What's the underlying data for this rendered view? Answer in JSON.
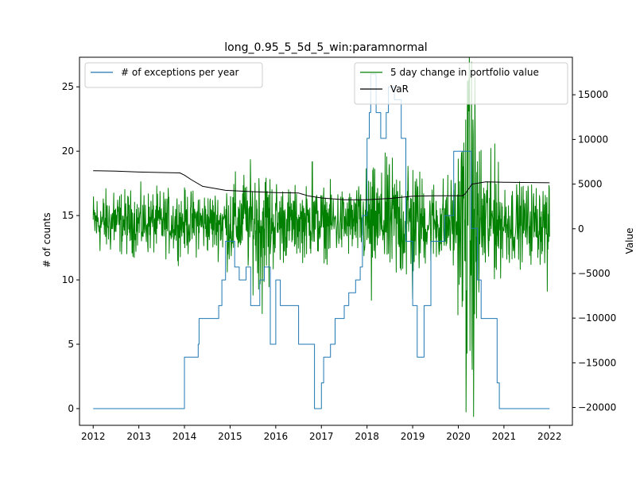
{
  "chart_data": {
    "type": "line",
    "title": "long_0.95_5_5d_5_win:paramnormal",
    "xlabel": "",
    "ylabel_left": "# of counts",
    "ylabel_right": "Value",
    "xlim": [
      2011.7,
      2022.5
    ],
    "ylim_left": [
      -1.3,
      27.3
    ],
    "ylim_right": [
      -22000,
      19200
    ],
    "x_ticks": [
      2012,
      2013,
      2014,
      2015,
      2016,
      2017,
      2018,
      2019,
      2020,
      2021,
      2022
    ],
    "x_tick_labels": [
      "2012",
      "2013",
      "2014",
      "2015",
      "2016",
      "2017",
      "2018",
      "2019",
      "2020",
      "2021",
      "2022"
    ],
    "y_left_ticks": [
      0,
      5,
      10,
      15,
      20,
      25
    ],
    "y_left_tick_labels": [
      "0",
      "5",
      "10",
      "15",
      "20",
      "25"
    ],
    "y_right_ticks": [
      -20000,
      -15000,
      -10000,
      -5000,
      0,
      5000,
      10000,
      15000
    ],
    "y_right_tick_labels": [
      "−20000",
      "−15000",
      "−10000",
      "−5000",
      "0",
      "5000",
      "10000",
      "15000"
    ],
    "grid": false,
    "legends": [
      {
        "placement": "upper-left",
        "entries": [
          {
            "name": "# of exceptions per year",
            "color": "#1f77b4"
          }
        ]
      },
      {
        "placement": "upper-right",
        "entries": [
          {
            "name": "5 day change in portfolio value",
            "color": "#008000"
          },
          {
            "name": "VaR",
            "color": "#000000"
          }
        ]
      }
    ],
    "series": [
      {
        "name": "# of exceptions per year",
        "axis": "left",
        "color": "#1f77b4",
        "step": true,
        "points": [
          [
            2012.0,
            0
          ],
          [
            2014.0,
            4
          ],
          [
            2014.3,
            5
          ],
          [
            2014.32,
            7
          ],
          [
            2014.75,
            8
          ],
          [
            2014.82,
            10
          ],
          [
            2014.9,
            13
          ],
          [
            2015.1,
            11
          ],
          [
            2015.2,
            10
          ],
          [
            2015.35,
            11
          ],
          [
            2015.45,
            8
          ],
          [
            2015.65,
            10
          ],
          [
            2015.75,
            11
          ],
          [
            2015.88,
            5
          ],
          [
            2016.0,
            10
          ],
          [
            2016.1,
            8
          ],
          [
            2016.5,
            5
          ],
          [
            2016.85,
            0
          ],
          [
            2017.0,
            2
          ],
          [
            2017.05,
            4
          ],
          [
            2017.2,
            5
          ],
          [
            2017.3,
            7
          ],
          [
            2017.5,
            8
          ],
          [
            2017.6,
            9
          ],
          [
            2017.75,
            10
          ],
          [
            2017.85,
            11
          ],
          [
            2017.9,
            15
          ],
          [
            2018.0,
            21
          ],
          [
            2018.05,
            23
          ],
          [
            2018.08,
            26
          ],
          [
            2018.2,
            23
          ],
          [
            2018.3,
            21
          ],
          [
            2018.42,
            23
          ],
          [
            2018.47,
            25
          ],
          [
            2018.6,
            24
          ],
          [
            2018.75,
            21
          ],
          [
            2018.85,
            13
          ],
          [
            2019.0,
            8
          ],
          [
            2019.1,
            4
          ],
          [
            2019.25,
            8
          ],
          [
            2019.4,
            13
          ],
          [
            2019.7,
            15
          ],
          [
            2019.9,
            20
          ],
          [
            2020.28,
            14
          ],
          [
            2020.42,
            10
          ],
          [
            2020.5,
            7
          ],
          [
            2020.85,
            2
          ],
          [
            2020.9,
            0
          ],
          [
            2022.0,
            0
          ]
        ]
      },
      {
        "name": "5 day change in portfolio value",
        "axis": "right",
        "color": "#008000",
        "generated": {
          "x_start": 2012.0,
          "x_end": 2022.0,
          "count": 1400
        },
        "base_amplitude": 2000,
        "volatility_profile": [
          [
            2012.0,
            1.0
          ],
          [
            2014.8,
            1.0
          ],
          [
            2015.0,
            1.5
          ],
          [
            2015.3,
            1.3
          ],
          [
            2015.6,
            2.1
          ],
          [
            2016.0,
            1.4
          ],
          [
            2016.3,
            1.1
          ],
          [
            2017.8,
            1.1
          ],
          [
            2018.0,
            1.7
          ],
          [
            2018.3,
            1.5
          ],
          [
            2018.6,
            2.0
          ],
          [
            2019.0,
            2.0
          ],
          [
            2019.3,
            1.3
          ],
          [
            2019.9,
            1.5
          ],
          [
            2020.1,
            3.5
          ],
          [
            2020.3,
            6.0
          ],
          [
            2020.5,
            2.3
          ],
          [
            2020.9,
            1.6
          ],
          [
            2021.3,
            1.2
          ],
          [
            2022.0,
            1.3
          ]
        ],
        "spikes": [
          [
            2012.45,
            4000
          ],
          [
            2014.3,
            3200
          ],
          [
            2015.3,
            6000
          ],
          [
            2015.7,
            -9500
          ],
          [
            2015.85,
            -6500
          ],
          [
            2016.8,
            7500
          ],
          [
            2018.1,
            -8000
          ],
          [
            2018.4,
            8500
          ],
          [
            2018.9,
            7000
          ],
          [
            2019.0,
            -7800
          ],
          [
            2020.17,
            -20500
          ],
          [
            2020.2,
            16500
          ],
          [
            2020.25,
            10500
          ],
          [
            2020.3,
            -12500
          ],
          [
            2020.4,
            -10000
          ],
          [
            2020.8,
            9500
          ],
          [
            2021.95,
            -7000
          ]
        ]
      },
      {
        "name": "VaR",
        "axis": "right",
        "color": "#000000",
        "points": [
          [
            2012.0,
            6500
          ],
          [
            2012.5,
            6450
          ],
          [
            2013.0,
            6350
          ],
          [
            2013.5,
            6300
          ],
          [
            2013.9,
            6250
          ],
          [
            2014.0,
            6000
          ],
          [
            2014.15,
            5500
          ],
          [
            2014.4,
            4750
          ],
          [
            2014.9,
            4300
          ],
          [
            2015.5,
            4150
          ],
          [
            2016.0,
            4050
          ],
          [
            2016.5,
            4000
          ],
          [
            2016.7,
            3700
          ],
          [
            2017.0,
            3450
          ],
          [
            2017.5,
            3250
          ],
          [
            2018.0,
            3250
          ],
          [
            2018.5,
            3400
          ],
          [
            2019.0,
            3650
          ],
          [
            2019.5,
            3700
          ],
          [
            2020.1,
            3700
          ],
          [
            2020.15,
            3900
          ],
          [
            2020.3,
            5000
          ],
          [
            2020.6,
            5250
          ],
          [
            2021.0,
            5200
          ],
          [
            2022.0,
            5150
          ]
        ]
      }
    ]
  }
}
